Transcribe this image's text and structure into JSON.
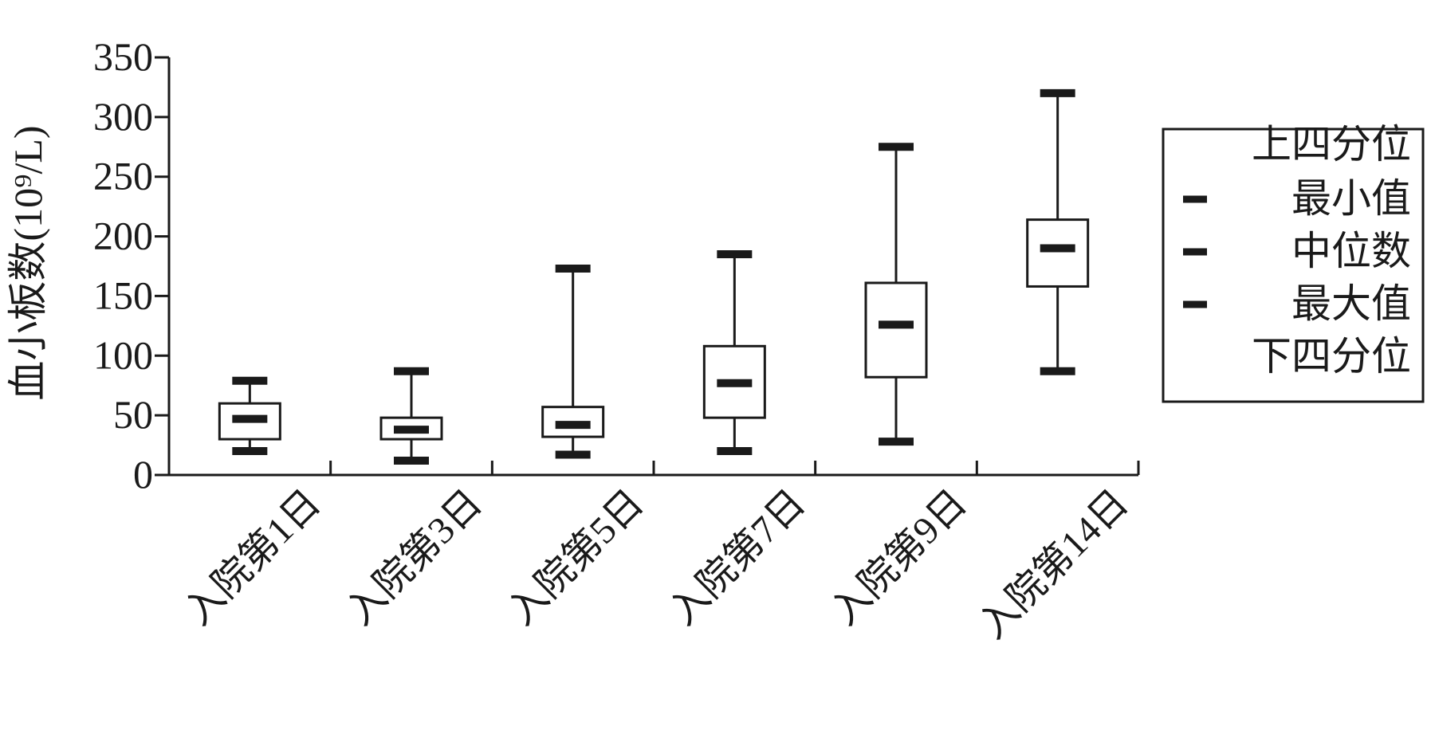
{
  "chart_data": {
    "type": "box",
    "ylabel": "血小板数(10⁹/L)",
    "ylim": [
      0,
      350
    ],
    "yticks": [
      0,
      50,
      100,
      150,
      200,
      250,
      300,
      350
    ],
    "categories": [
      "入院第1日",
      "入院第3日",
      "入院第5日",
      "入院第7日",
      "入院第9日",
      "入院第14日"
    ],
    "boxes": [
      {
        "min": 20,
        "q1": 30,
        "median": 47,
        "q3": 60,
        "max": 79
      },
      {
        "min": 12,
        "q1": 30,
        "median": 38,
        "q3": 48,
        "max": 87
      },
      {
        "min": 17,
        "q1": 32,
        "median": 42,
        "q3": 57,
        "max": 173
      },
      {
        "min": 20,
        "q1": 48,
        "median": 77,
        "q3": 108,
        "max": 185
      },
      {
        "min": 28,
        "q1": 82,
        "median": 126,
        "q3": 161,
        "max": 275
      },
      {
        "min": 87,
        "q1": 158,
        "median": 190,
        "q3": 214,
        "max": 320
      }
    ],
    "legend": {
      "position": "right",
      "items": [
        "上四分位",
        "最小值",
        "中位数",
        "最大值",
        "下四分位"
      ]
    },
    "grid": false
  }
}
